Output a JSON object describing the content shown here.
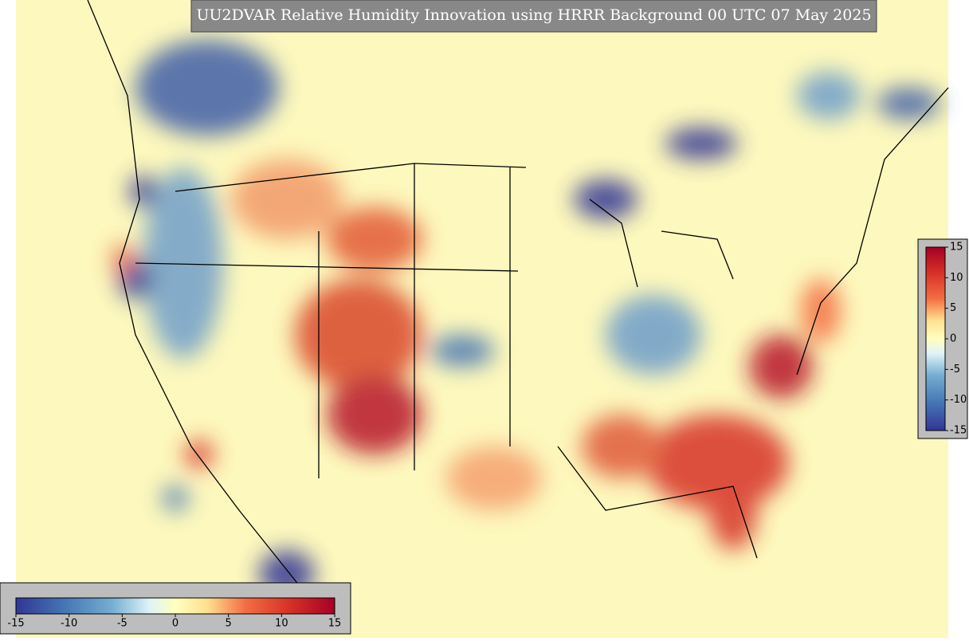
{
  "title": "UU2DVAR Relative Humidity Innovation using HRRR Background 00 UTC 07 May 2025",
  "colorbar_bottom": {
    "lim": [
      -15,
      15
    ],
    "ticks": [
      -15,
      -10,
      -5,
      0,
      5,
      10,
      15
    ]
  },
  "colorbar_right": {
    "lim": [
      -15,
      15
    ],
    "ticks": [
      15,
      10,
      5,
      0,
      -5,
      -10,
      -15
    ]
  }
}
